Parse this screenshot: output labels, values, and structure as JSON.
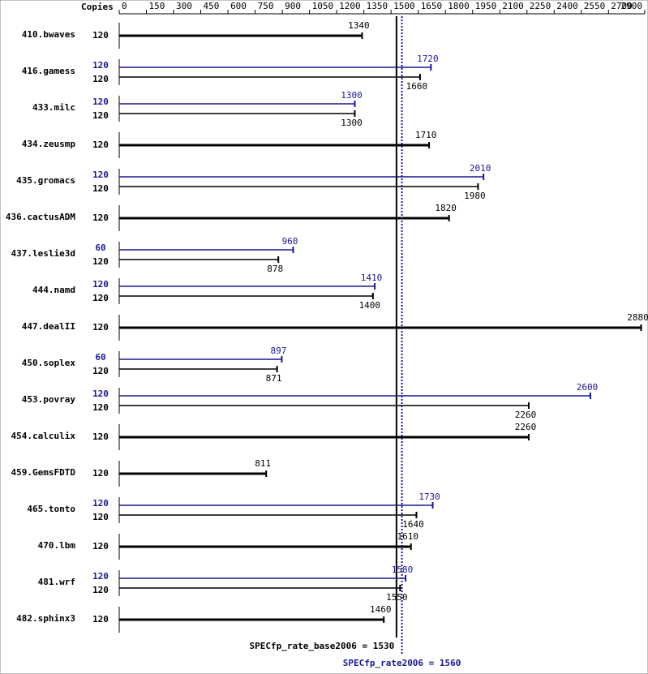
{
  "chart_data": {
    "type": "bar",
    "copies_header": "Copies",
    "xlim": [
      0,
      2900
    ],
    "xticks": [
      0,
      150,
      300,
      450,
      600,
      750,
      900,
      1050,
      1200,
      1350,
      1500,
      1650,
      1800,
      1950,
      2100,
      2250,
      2400,
      2550,
      2700,
      2900
    ],
    "base_color": "#000000",
    "peak_color": "#191991",
    "categories": [
      "410.bwaves",
      "416.gamess",
      "433.milc",
      "434.zeusmp",
      "435.gromacs",
      "436.cactusADM",
      "437.leslie3d",
      "444.namd",
      "447.dealII",
      "450.soplex",
      "453.povray",
      "454.calculix",
      "459.GemsFDTD",
      "465.tonto",
      "470.lbm",
      "481.wrf",
      "482.sphinx3"
    ],
    "base_copies": [
      120,
      120,
      120,
      120,
      120,
      120,
      120,
      120,
      120,
      120,
      120,
      120,
      120,
      120,
      120,
      120,
      120
    ],
    "base": [
      1340,
      1660,
      1300,
      1710,
      1980,
      1820,
      878,
      1400,
      2880,
      871,
      2260,
      2260,
      811,
      1640,
      1610,
      1550,
      1460
    ],
    "peak_copies": [
      null,
      120,
      120,
      null,
      120,
      null,
      60,
      120,
      null,
      60,
      120,
      null,
      null,
      120,
      null,
      120,
      null
    ],
    "peak": [
      null,
      1720,
      1300,
      null,
      2010,
      null,
      960,
      1410,
      null,
      897,
      2600,
      null,
      null,
      1730,
      null,
      1580,
      null
    ],
    "base_reference": {
      "value": 1530,
      "label": "SPECfp_rate_base2006 = 1530"
    },
    "peak_reference": {
      "value": 1560,
      "label": "SPECfp_rate2006 = 1560"
    }
  }
}
